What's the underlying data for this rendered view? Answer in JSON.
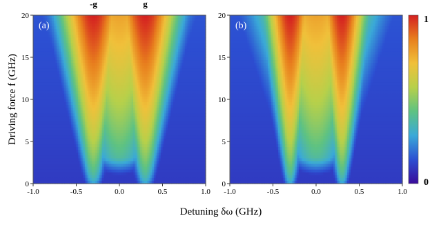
{
  "chart_data": [
    {
      "type": "heatmap",
      "panel_label": "(a)",
      "xlabel": "Detuning δω (GHz)",
      "ylabel": "Driving force f (GHz)",
      "xlim": [
        -1.0,
        1.0
      ],
      "ylim": [
        0,
        20
      ],
      "x_ticks": [
        "-1.0",
        "-0.5",
        "0.0",
        "0.5",
        "1.0"
      ],
      "y_ticks": [
        "0",
        "5",
        "10",
        "15",
        "20"
      ],
      "top_labels": [
        {
          "text": "-g",
          "x": -0.3
        },
        {
          "text": "g",
          "x": 0.3
        }
      ],
      "peak_positions": [
        -0.3,
        0.3
      ],
      "value_range": [
        0,
        1
      ]
    },
    {
      "type": "heatmap",
      "panel_label": "(b)",
      "xlim": [
        -1.0,
        1.0
      ],
      "ylim": [
        0,
        20
      ],
      "x_ticks": [
        "-1.0",
        "-0.5",
        "0.0",
        "0.5",
        "1.0"
      ],
      "y_ticks": [
        "0",
        "5",
        "10",
        "15",
        "20"
      ],
      "peak_positions": [
        -0.3,
        0.3
      ],
      "value_range": [
        0,
        1
      ]
    }
  ],
  "colorbar": {
    "min_label": "0",
    "max_label": "1",
    "colors": [
      "#3a0c9a",
      "#2c4fd2",
      "#3aa9d8",
      "#5ec282",
      "#b7d04a",
      "#f0c03a",
      "#e8801e",
      "#d42020"
    ]
  }
}
